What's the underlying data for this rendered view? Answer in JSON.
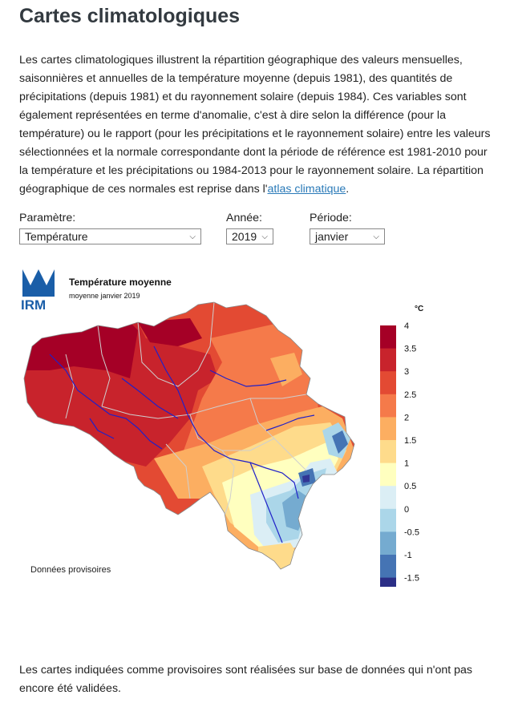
{
  "page": {
    "title": "Cartes climatologiques",
    "intro_text": "Les cartes climatologiques illustrent la répartition géographique des valeurs mensuelles, saisonnières et annuelles de la température moyenne (depuis 1981), des quantités de précipitations (depuis 1981) et du rayonnement solaire (depuis 1984). Ces variables sont également représentées en terme d'anomalie, c'est à dire selon la différence (pour la température) ou le rapport (pour les précipitations et le rayonnement solaire) entre les valeurs sélectionnées et la normale correspondante dont la période de référence est 1981-2010 pour la température et les précipitations ou 1984-2013 pour le rayonnement solaire. La répartition géographique de ces normales est reprise dans l'",
    "intro_link": "atlas climatique",
    "intro_end": ".",
    "footer_text": "Les cartes indiquées comme provisoires sont réalisées sur base de données qui n'ont pas encore été validées."
  },
  "form": {
    "parametre_label": "Paramètre:",
    "parametre_value": "Température",
    "annee_label": "Année:",
    "annee_value": "2019",
    "periode_label": "Période:",
    "periode_value": "janvier"
  },
  "map": {
    "logo_text": "IRM",
    "title": "Température moyenne",
    "subtitle": "moyenne janvier 2019",
    "unit": "°C",
    "note": "Données provisoires",
    "legend": [
      {
        "label": "4",
        "color": "#a50026"
      },
      {
        "label": "3.5",
        "color": "#c8232c"
      },
      {
        "label": "3",
        "color": "#e34a33"
      },
      {
        "label": "2.5",
        "color": "#f57a4a"
      },
      {
        "label": "2",
        "color": "#fcae61"
      },
      {
        "label": "1.5",
        "color": "#fedb8b"
      },
      {
        "label": "1",
        "color": "#ffffbf"
      },
      {
        "label": "0.5",
        "color": "#dbeef5"
      },
      {
        "label": "0",
        "color": "#abd6e9"
      },
      {
        "label": "-0.5",
        "color": "#75abd0"
      },
      {
        "label": "-1",
        "color": "#4574b4"
      },
      {
        "label": "-1.5",
        "color": "#313695"
      }
    ],
    "legend_end_color": "#2b2e86"
  }
}
